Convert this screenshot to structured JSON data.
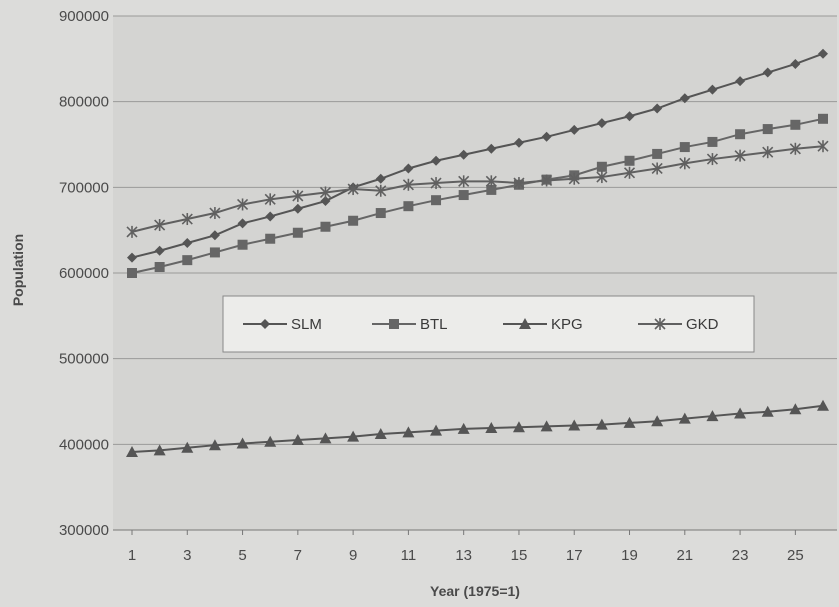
{
  "chart_data": {
    "type": "line",
    "title": "",
    "xlabel": "Year (1975=1)",
    "ylabel": "Population",
    "x": [
      1,
      2,
      3,
      4,
      5,
      6,
      7,
      8,
      9,
      10,
      11,
      12,
      13,
      14,
      15,
      16,
      17,
      18,
      19,
      20,
      21,
      22,
      23,
      24,
      25,
      26
    ],
    "xticks": [
      "1",
      "3",
      "5",
      "7",
      "9",
      "11",
      "13",
      "15",
      "17",
      "19",
      "21",
      "23",
      "25"
    ],
    "ylim": [
      300000,
      900000
    ],
    "yticks": [
      "300000",
      "400000",
      "500000",
      "600000",
      "700000",
      "800000",
      "900000"
    ],
    "grid": "horizontal",
    "legend_position": "center",
    "series": [
      {
        "name": "SLM",
        "marker": "diamond",
        "color": "#555555",
        "values": [
          618000,
          626000,
          635000,
          644000,
          658000,
          666000,
          675000,
          684000,
          700000,
          710000,
          722000,
          731000,
          738000,
          745000,
          752000,
          759000,
          767000,
          775000,
          783000,
          792000,
          804000,
          814000,
          824000,
          834000,
          844000,
          856000
        ]
      },
      {
        "name": "BTL",
        "marker": "square",
        "color": "#666666",
        "values": [
          600000,
          607000,
          615000,
          624000,
          633000,
          640000,
          647000,
          654000,
          661000,
          670000,
          678000,
          685000,
          691000,
          697000,
          703000,
          709000,
          714000,
          724000,
          731000,
          739000,
          747000,
          753000,
          762000,
          768000,
          773000,
          780000
        ]
      },
      {
        "name": "KPG",
        "marker": "triangle",
        "color": "#555555",
        "values": [
          391000,
          393000,
          396000,
          399000,
          401000,
          403000,
          405000,
          407000,
          409000,
          412000,
          414000,
          416000,
          418000,
          419000,
          420000,
          421000,
          422000,
          423000,
          425000,
          427000,
          430000,
          433000,
          436000,
          438000,
          441000,
          445000
        ]
      },
      {
        "name": "GKD",
        "marker": "asterisk",
        "color": "#606060",
        "values": [
          648000,
          656000,
          663000,
          670000,
          680000,
          686000,
          690000,
          694000,
          698000,
          696000,
          703000,
          705000,
          707000,
          707000,
          705000,
          708000,
          710000,
          712000,
          717000,
          722000,
          728000,
          733000,
          737000,
          741000,
          745000,
          748000
        ]
      }
    ]
  }
}
